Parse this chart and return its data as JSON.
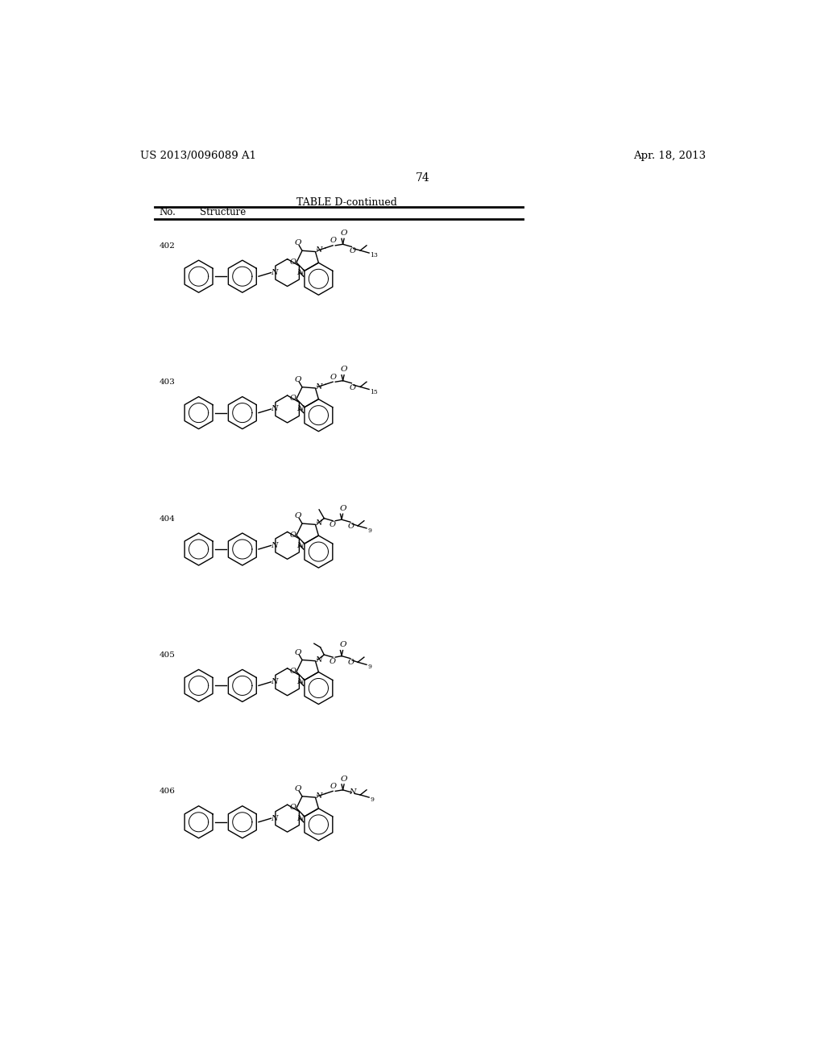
{
  "page_header_left": "US 2013/0096089 A1",
  "page_header_right": "Apr. 18, 2013",
  "page_number": "74",
  "table_title": "TABLE D-continued",
  "col1_header": "No.",
  "col2_header": "Structure",
  "compound_numbers": [
    "402",
    "403",
    "404",
    "405",
    "406"
  ],
  "subscripts": [
    "13",
    "15",
    "9",
    "9",
    "9"
  ],
  "side_chains": [
    "CH2_ester",
    "CH2_ester",
    "CHMe_ester",
    "CHEt_ester",
    "CH2_carbamate"
  ],
  "background_color": "#ffffff",
  "text_color": "#000000",
  "lw": 1.0
}
